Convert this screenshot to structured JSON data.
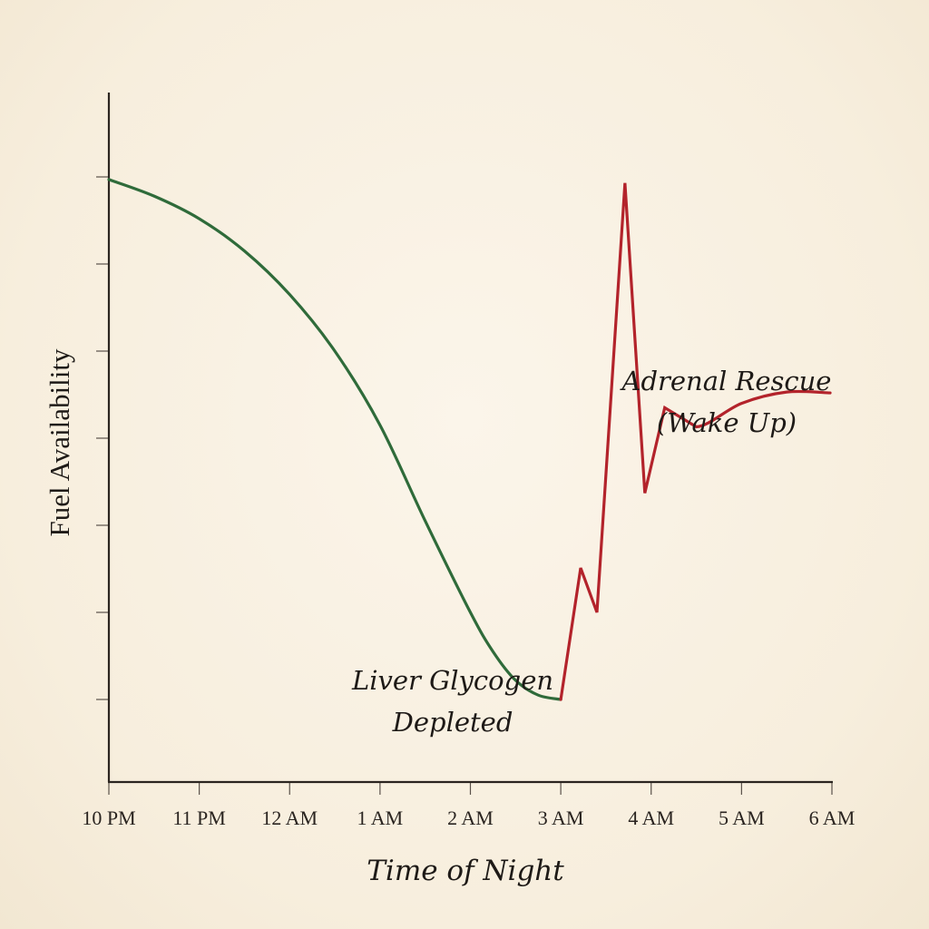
{
  "chart_data": {
    "type": "line",
    "title": "",
    "xlabel": "Time of Night",
    "ylabel": "Fuel Availability",
    "x_ticks": [
      "10 PM",
      "11 PM",
      "12 AM",
      "1 AM",
      "2 AM",
      "3 AM",
      "4 AM",
      "5 AM",
      "6 AM"
    ],
    "y_ticks_count": 7,
    "y_tick_labels": [],
    "xlim": [
      0,
      8
    ],
    "ylim": [
      0,
      7.5
    ],
    "grid": false,
    "legend": null,
    "series": [
      {
        "name": "Liver Glycogen",
        "color": "#2f6b3a",
        "points": [
          [
            0.0,
            6.97
          ],
          [
            0.5,
            6.78
          ],
          [
            1.0,
            6.52
          ],
          [
            1.5,
            6.15
          ],
          [
            2.0,
            5.65
          ],
          [
            2.5,
            5.0
          ],
          [
            3.0,
            4.15
          ],
          [
            3.5,
            3.05
          ],
          [
            4.0,
            2.0
          ],
          [
            4.25,
            1.55
          ],
          [
            4.5,
            1.22
          ],
          [
            4.75,
            1.05
          ],
          [
            5.0,
            1.0
          ]
        ]
      },
      {
        "name": "Adrenal Rescue",
        "color": "#b3232b",
        "points": [
          [
            5.0,
            1.0
          ],
          [
            5.22,
            2.51
          ],
          [
            5.4,
            2.0
          ],
          [
            5.71,
            6.93
          ],
          [
            5.93,
            3.37
          ],
          [
            6.15,
            4.35
          ],
          [
            6.5,
            4.13
          ],
          [
            7.0,
            4.4
          ],
          [
            7.5,
            4.53
          ],
          [
            7.98,
            4.52
          ]
        ]
      }
    ],
    "annotations": [
      {
        "text_lines": [
          "Liver Glycogen",
          "Depleted"
        ],
        "x": 3.8,
        "y": 0.7
      },
      {
        "text_lines": [
          "Adrenal Rescue",
          "(Wake Up)"
        ],
        "x": 6.8,
        "y": 4.6
      }
    ]
  },
  "labels": {
    "xlabel": "Time of Night",
    "ylabel": "Fuel Availability",
    "annot_glycogen_1": "Liver Glycogen",
    "annot_glycogen_2": "Depleted",
    "annot_adrenal_1": "Adrenal Rescue",
    "annot_adrenal_2": "(Wake Up)"
  },
  "colors": {
    "background": "#f8f0e0",
    "axis": "#2b2520",
    "glycogen_line": "#2f6b3a",
    "adrenal_line": "#b3232b",
    "text": "#1e1a17"
  }
}
